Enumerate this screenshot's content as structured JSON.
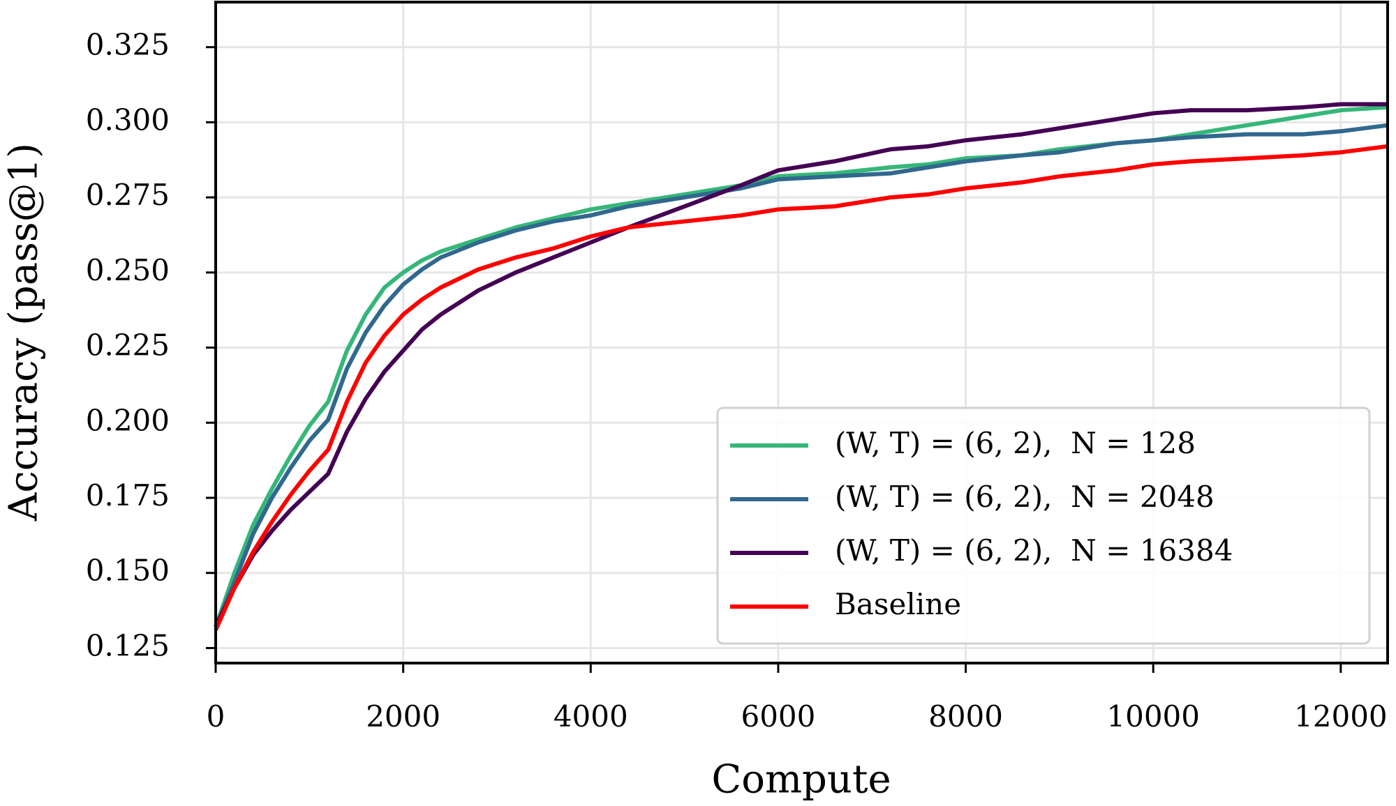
{
  "chart_data": {
    "type": "line",
    "x_label": "Compute",
    "y_label": "Accuracy (pass@1)",
    "x": [
      0,
      200,
      400,
      600,
      800,
      1000,
      1200,
      1400,
      1600,
      1800,
      2000,
      2200,
      2400,
      2800,
      3200,
      3600,
      4000,
      4400,
      5000,
      5600,
      6000,
      6600,
      7200,
      7600,
      8000,
      8600,
      9000,
      9600,
      10000,
      10400,
      11000,
      11600,
      12000,
      12500
    ],
    "series": [
      {
        "name": "(W, T) = (6, 2),  N = 128",
        "color": "#35b779",
        "values": [
          0.132,
          0.15,
          0.166,
          0.178,
          0.189,
          0.199,
          0.207,
          0.224,
          0.236,
          0.245,
          0.25,
          0.254,
          0.257,
          0.261,
          0.265,
          0.268,
          0.271,
          0.273,
          0.276,
          0.279,
          0.282,
          0.283,
          0.285,
          0.286,
          0.288,
          0.289,
          0.291,
          0.293,
          0.294,
          0.296,
          0.299,
          0.302,
          0.304,
          0.305
        ]
      },
      {
        "name": "(W, T) = (6, 2),  N = 2048",
        "color": "#31688e",
        "values": [
          0.132,
          0.147,
          0.163,
          0.175,
          0.185,
          0.194,
          0.201,
          0.218,
          0.23,
          0.239,
          0.246,
          0.251,
          0.255,
          0.26,
          0.264,
          0.267,
          0.269,
          0.272,
          0.275,
          0.278,
          0.281,
          0.282,
          0.283,
          0.285,
          0.287,
          0.289,
          0.29,
          0.293,
          0.294,
          0.295,
          0.296,
          0.296,
          0.297,
          0.299
        ]
      },
      {
        "name": "(W, T) = (6, 2),  N = 16384",
        "color": "#440154",
        "values": [
          0.132,
          0.145,
          0.156,
          0.164,
          0.171,
          0.177,
          0.183,
          0.197,
          0.208,
          0.217,
          0.224,
          0.231,
          0.236,
          0.244,
          0.25,
          0.255,
          0.26,
          0.265,
          0.272,
          0.279,
          0.284,
          0.287,
          0.291,
          0.292,
          0.294,
          0.296,
          0.298,
          0.301,
          0.303,
          0.304,
          0.304,
          0.305,
          0.306,
          0.306
        ]
      },
      {
        "name": "Baseline",
        "color": "#ff0000",
        "values": [
          0.131,
          0.145,
          0.157,
          0.167,
          0.176,
          0.184,
          0.191,
          0.207,
          0.22,
          0.229,
          0.236,
          0.241,
          0.245,
          0.251,
          0.255,
          0.258,
          0.262,
          0.265,
          0.267,
          0.269,
          0.271,
          0.272,
          0.275,
          0.276,
          0.278,
          0.28,
          0.282,
          0.284,
          0.286,
          0.287,
          0.288,
          0.289,
          0.29,
          0.292
        ]
      }
    ],
    "xlim": [
      0,
      12500
    ],
    "ylim": [
      0.12,
      0.34
    ],
    "xticks": [
      0,
      2000,
      4000,
      6000,
      8000,
      10000,
      12000
    ],
    "yticks": [
      0.125,
      {
        "value": 0.15,
        "label": "0.150"
      },
      0.175,
      {
        "value": 0.2,
        "label": "0.200"
      },
      0.225,
      {
        "value": 0.25,
        "label": "0.250"
      },
      0.275,
      {
        "value": 0.3,
        "label": "0.300"
      },
      0.325
    ],
    "grid": true,
    "legend": "lower right"
  }
}
